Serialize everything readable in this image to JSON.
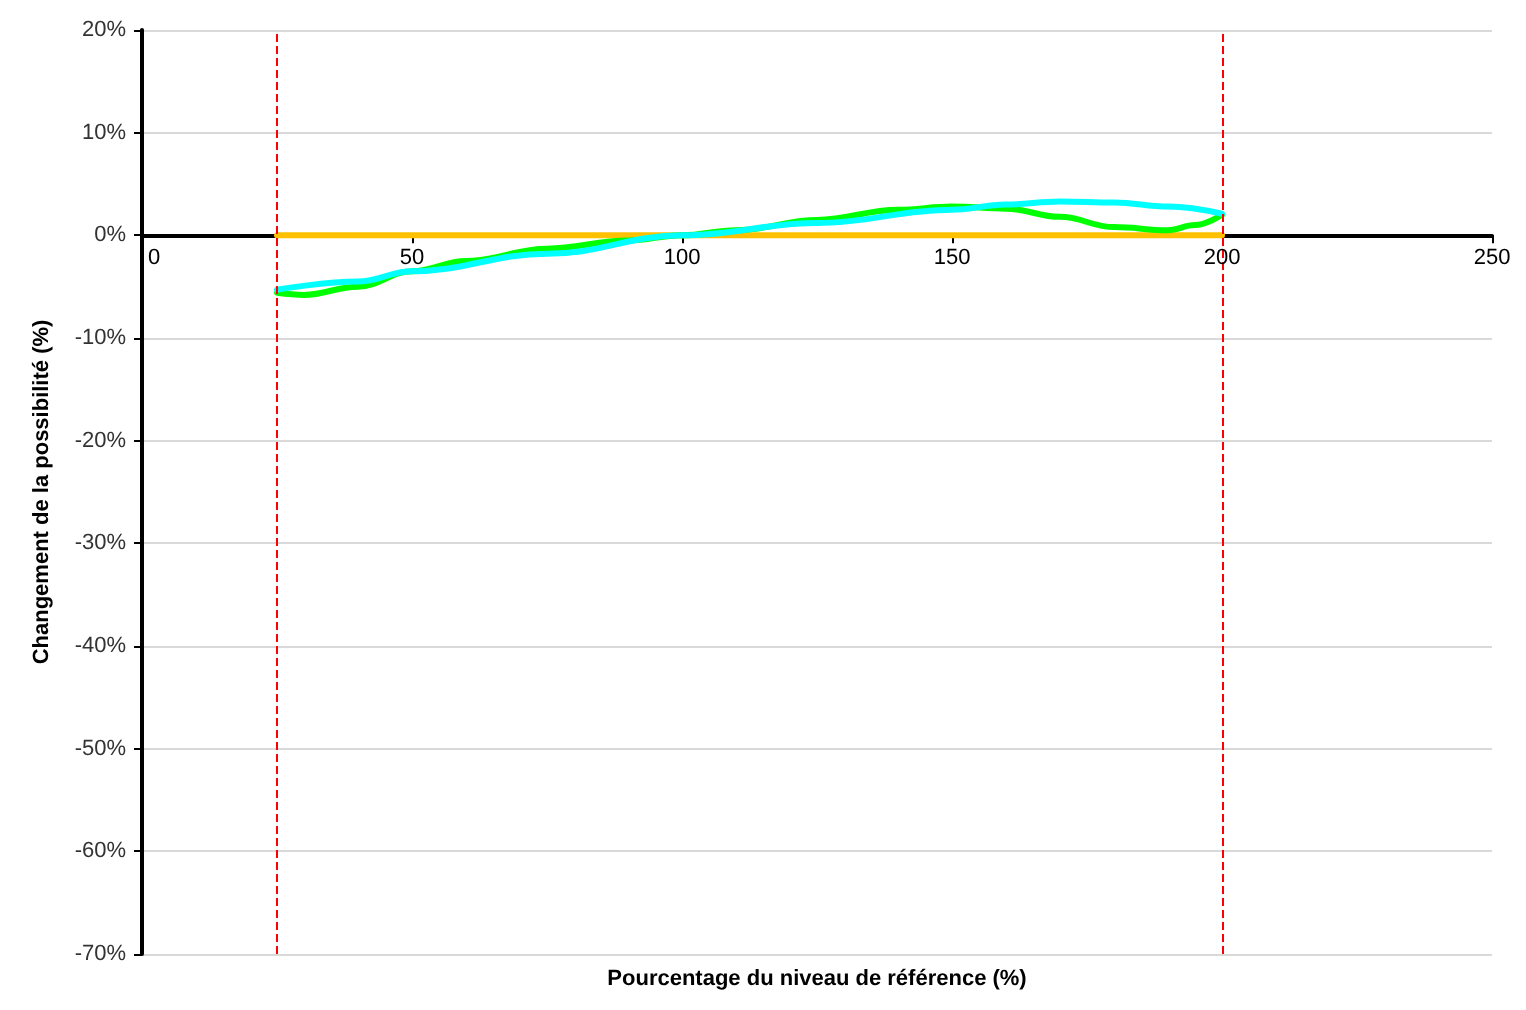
{
  "chart_data": {
    "type": "line",
    "xlabel": "Pourcentage du niveau de référence (%)",
    "ylabel": "Changement de la possibilité (%)",
    "xlim": [
      0,
      250
    ],
    "xticks": [
      0,
      50,
      100,
      150,
      200,
      250
    ],
    "ylim": [
      -70,
      20
    ],
    "yticks": [
      {
        "value": -70,
        "label": "-70%"
      },
      {
        "value": -60,
        "label": "-60%"
      },
      {
        "value": -50,
        "label": "-50%"
      },
      {
        "value": -40,
        "label": "-40%"
      },
      {
        "value": -30,
        "label": "-30%"
      },
      {
        "value": -20,
        "label": "-20%"
      },
      {
        "value": -10,
        "label": "-10%"
      },
      {
        "value": 0,
        "label": "0%"
      },
      {
        "value": 10,
        "label": "10%"
      },
      {
        "value": 20,
        "label": "20%"
      }
    ],
    "grid": "y",
    "marker": "none",
    "line_style": "solid",
    "series": [
      {
        "color": "#ffc000",
        "x": [
          25,
          200
        ],
        "values": [
          0,
          0
        ]
      },
      {
        "color": "#00ff00",
        "x": [
          25,
          30,
          40,
          50,
          60,
          75,
          90,
          100,
          110,
          125,
          140,
          150,
          160,
          170,
          180,
          190,
          195,
          200
        ],
        "values": [
          -5.6,
          -5.8,
          -5,
          -3.5,
          -2.5,
          -1.3,
          -0.5,
          0,
          0.5,
          1.5,
          2.5,
          2.8,
          2.6,
          1.8,
          0.8,
          0.5,
          1,
          2
        ]
      },
      {
        "color": "#00ffff",
        "x": [
          25,
          40,
          50,
          75,
          100,
          125,
          150,
          160,
          170,
          180,
          190,
          200
        ],
        "values": [
          -5.3,
          -4.5,
          -3.5,
          -1.8,
          0,
          1.2,
          2.5,
          3,
          3.3,
          3.2,
          2.8,
          2.1
        ]
      }
    ],
    "ref_lines": [
      {
        "axis": "x",
        "value": 25,
        "color": "#ff0000",
        "line_style": "dashed"
      },
      {
        "axis": "x",
        "value": 200,
        "color": "#ff0000",
        "line_style": "dashed"
      }
    ]
  }
}
